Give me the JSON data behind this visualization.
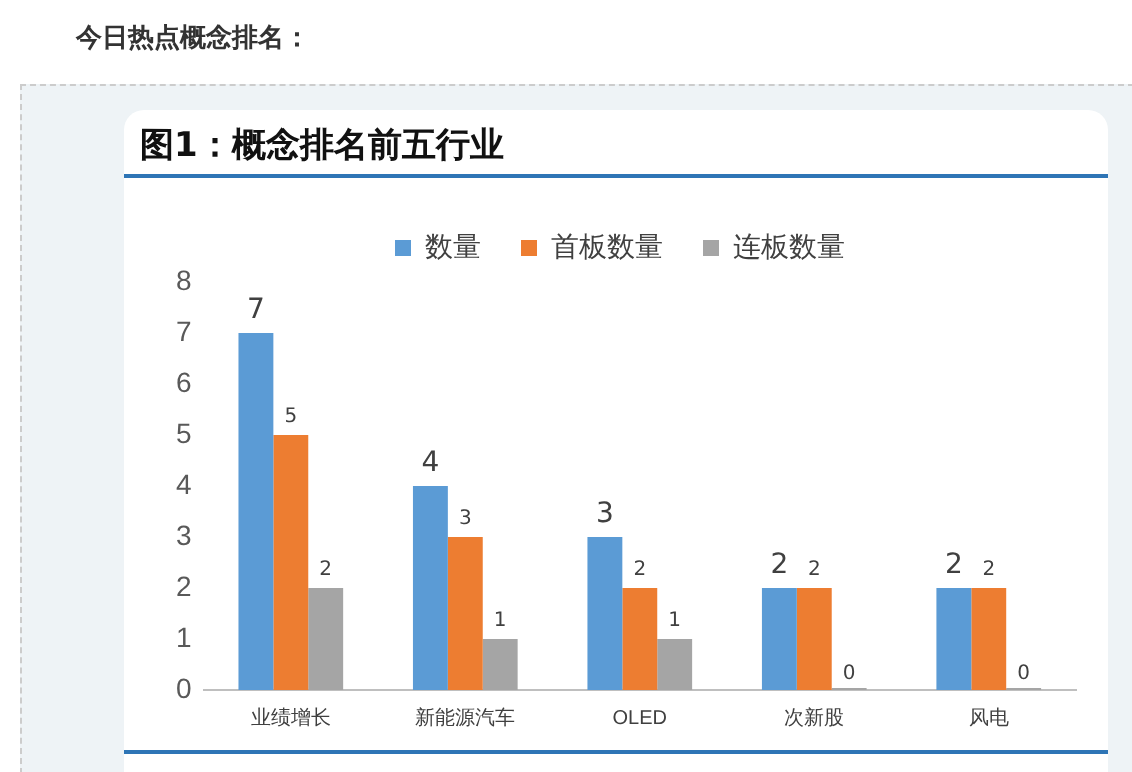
{
  "chart_data": {
    "type": "bar",
    "title": "图1：概念排名前五行业",
    "annotations": [
      "今日热点概念排名："
    ],
    "categories": [
      "业绩增长",
      "新能源汽车",
      "OLED",
      "次新股",
      "风电"
    ],
    "series": [
      {
        "name": "数量",
        "color": "#5b9bd5",
        "values": [
          7,
          4,
          3,
          2,
          2
        ]
      },
      {
        "name": "首板数量",
        "color": "#ed7d31",
        "values": [
          5,
          3,
          2,
          2,
          2
        ]
      },
      {
        "name": "连板数量",
        "color": "#a5a5a5",
        "values": [
          2,
          1,
          1,
          0,
          0
        ]
      }
    ],
    "ylim": [
      0,
      8
    ],
    "yticks": [
      0,
      1,
      2,
      3,
      4,
      5,
      6,
      7,
      8
    ],
    "legend": "top",
    "data_labels": true,
    "grid": false
  }
}
